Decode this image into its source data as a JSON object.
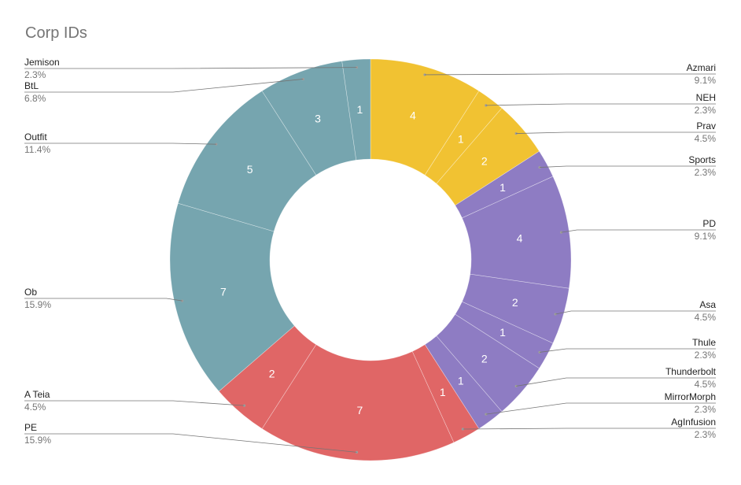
{
  "chart_data": {
    "type": "pie",
    "variant": "donut",
    "title": "Corp IDs",
    "legend": "labeled-leader-lines",
    "slices": [
      {
        "label": "Azmari",
        "value": 4,
        "percent": "9.1%",
        "color": "#f1c232"
      },
      {
        "label": "NEH",
        "value": 1,
        "percent": "2.3%",
        "color": "#f1c232"
      },
      {
        "label": "Prav",
        "value": 2,
        "percent": "4.5%",
        "color": "#f1c232"
      },
      {
        "label": "Sports",
        "value": 1,
        "percent": "2.3%",
        "color": "#8e7cc3"
      },
      {
        "label": "PD",
        "value": 4,
        "percent": "9.1%",
        "color": "#8e7cc3"
      },
      {
        "label": "Asa",
        "value": 2,
        "percent": "4.5%",
        "color": "#8e7cc3"
      },
      {
        "label": "Thule",
        "value": 1,
        "percent": "2.3%",
        "color": "#8e7cc3"
      },
      {
        "label": "Thunderbolt",
        "value": 2,
        "percent": "4.5%",
        "color": "#8e7cc3"
      },
      {
        "label": "MirrorMorph",
        "value": 1,
        "percent": "2.3%",
        "color": "#8e7cc3"
      },
      {
        "label": "AgInfusion",
        "value": 1,
        "percent": "2.3%",
        "color": "#e06666"
      },
      {
        "label": "PE",
        "value": 7,
        "percent": "15.9%",
        "color": "#e06666"
      },
      {
        "label": "A Teia",
        "value": 2,
        "percent": "4.5%",
        "color": "#e06666"
      },
      {
        "label": "Ob",
        "value": 7,
        "percent": "15.9%",
        "color": "#76a5af"
      },
      {
        "label": "Outfit",
        "value": 5,
        "percent": "11.4%",
        "color": "#76a5af"
      },
      {
        "label": "BtL",
        "value": 3,
        "percent": "6.8%",
        "color": "#76a5af"
      },
      {
        "label": "Jemison",
        "value": 1,
        "percent": "2.3%",
        "color": "#76a5af"
      }
    ]
  }
}
